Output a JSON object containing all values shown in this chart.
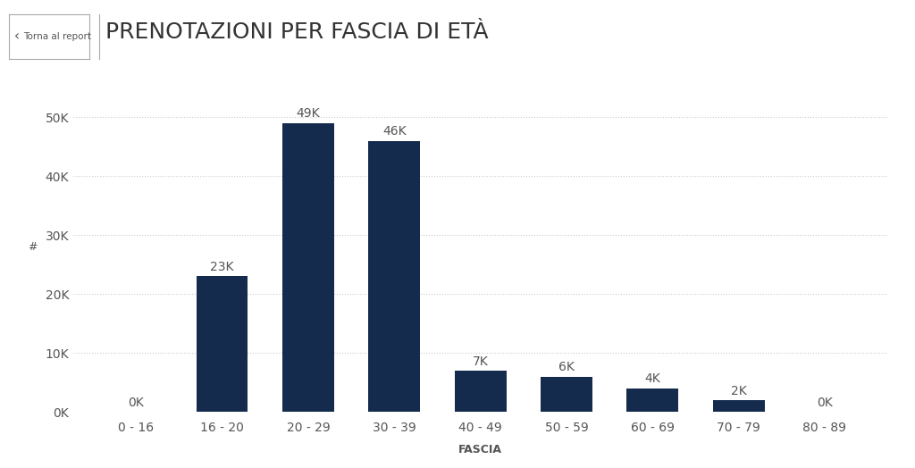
{
  "categories": [
    "0 - 16",
    "16 - 20",
    "20 - 29",
    "30 - 39",
    "40 - 49",
    "50 - 59",
    "60 - 69",
    "70 - 79",
    "80 - 89"
  ],
  "values": [
    0,
    23000,
    49000,
    46000,
    7000,
    6000,
    4000,
    2000,
    0
  ],
  "bar_labels": [
    "0K",
    "23K",
    "49K",
    "46K",
    "7K",
    "6K",
    "4K",
    "2K",
    "0K"
  ],
  "bar_color": "#152B4E",
  "background_color": "#ffffff",
  "title": "PRENOTAZIONI PER FASCIA DI ETÀ",
  "xlabel": "FASCIA",
  "ylabel": "#",
  "yticks": [
    0,
    10000,
    20000,
    30000,
    40000,
    50000
  ],
  "ytick_labels": [
    "0K",
    "10K",
    "20K",
    "30K",
    "40K",
    "50K"
  ],
  "ylim": [
    0,
    54000
  ],
  "title_fontsize": 18,
  "axis_label_fontsize": 9,
  "tick_fontsize": 10,
  "bar_label_fontsize": 10,
  "grid_color": "#cccccc",
  "text_color": "#555555",
  "nav_button_text": "Torna al report"
}
